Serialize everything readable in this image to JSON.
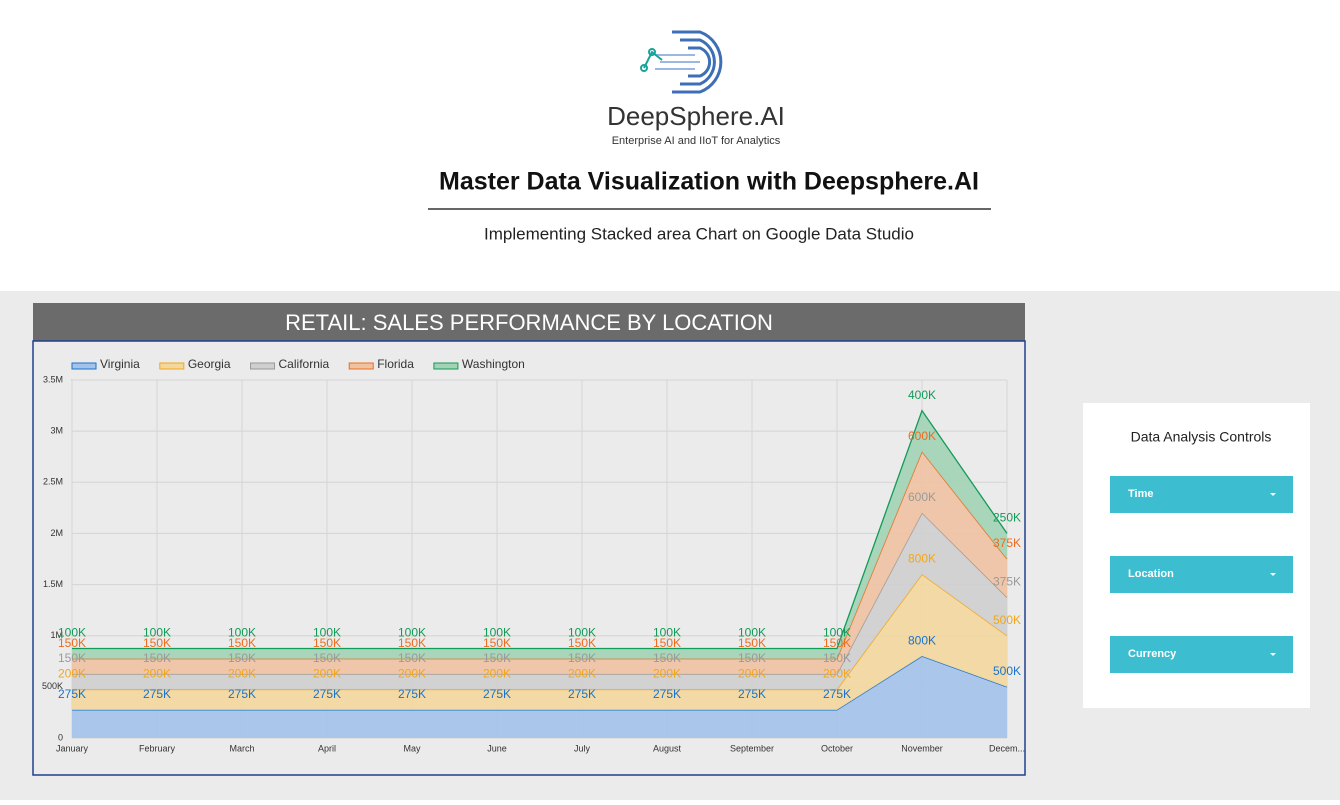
{
  "header": {
    "brand": "DeepSphere.AI",
    "tagline": "Enterprise AI and IIoT for Analytics",
    "title": "Master Data Visualization with Deepsphere.AI",
    "subtitle": "Implementing Stacked area Chart on Google Data Studio"
  },
  "chart_data": {
    "type": "stacked-area",
    "title": "RETAIL: SALES PERFORMANCE BY LOCATION",
    "categories": [
      "January",
      "February",
      "March",
      "April",
      "May",
      "June",
      "July",
      "August",
      "September",
      "October",
      "November",
      "Decem..."
    ],
    "series": [
      {
        "name": "Virginia",
        "color": "#1a73c8",
        "fill": "#a3c3eb",
        "values": [
          275000,
          275000,
          275000,
          275000,
          275000,
          275000,
          275000,
          275000,
          275000,
          275000,
          800000,
          500000
        ],
        "value_labels": [
          "275K",
          "275K",
          "275K",
          "275K",
          "275K",
          "275K",
          "275K",
          "275K",
          "275K",
          "275K",
          "800K",
          "500K"
        ]
      },
      {
        "name": "Georgia",
        "color": "#f2a71b",
        "fill": "#f3d79d",
        "values": [
          200000,
          200000,
          200000,
          200000,
          200000,
          200000,
          200000,
          200000,
          200000,
          200000,
          800000,
          500000
        ],
        "value_labels": [
          "200K",
          "200K",
          "200K",
          "200K",
          "200K",
          "200K",
          "200K",
          "200K",
          "200K",
          "200K",
          "800K",
          "500K"
        ]
      },
      {
        "name": "California",
        "color": "#9a9a9a",
        "fill": "#cfcfcf",
        "values": [
          150000,
          150000,
          150000,
          150000,
          150000,
          150000,
          150000,
          150000,
          150000,
          150000,
          600000,
          375000
        ],
        "value_labels": [
          "150K",
          "150K",
          "150K",
          "150K",
          "150K",
          "150K",
          "150K",
          "150K",
          "150K",
          "150K",
          "600K",
          "375K"
        ]
      },
      {
        "name": "Florida",
        "color": "#ec6c1f",
        "fill": "#efc2a2",
        "values": [
          150000,
          150000,
          150000,
          150000,
          150000,
          150000,
          150000,
          150000,
          150000,
          150000,
          600000,
          375000
        ],
        "value_labels": [
          "150K",
          "150K",
          "150K",
          "150K",
          "150K",
          "150K",
          "150K",
          "150K",
          "150K",
          "150K",
          "600K",
          "375K"
        ]
      },
      {
        "name": "Washington",
        "color": "#129a58",
        "fill": "#a2d3b5",
        "values": [
          100000,
          100000,
          100000,
          100000,
          100000,
          100000,
          100000,
          100000,
          100000,
          100000,
          400000,
          250000
        ],
        "value_labels": [
          "100K",
          "100K",
          "100K",
          "100K",
          "100K",
          "100K",
          "100K",
          "100K",
          "100K",
          "100K",
          "400K",
          "250K"
        ]
      }
    ],
    "ylim": [
      0,
      3500000
    ],
    "yticks": [
      0,
      {
        "value": 500000,
        "label": "500K"
      },
      {
        "value": 1000000,
        "label": "1M"
      },
      {
        "value": 1500000,
        "label": "1.5M"
      },
      {
        "value": 2000000,
        "label": "2M"
      },
      {
        "value": 2500000,
        "label": "2.5M"
      },
      {
        "value": 3000000,
        "label": "3M"
      },
      {
        "value": 3500000,
        "label": "3.5M"
      }
    ],
    "grid": true
  },
  "controls": {
    "title": "Data Analysis Controls",
    "items": [
      "Time",
      "Location",
      "Currency"
    ]
  }
}
